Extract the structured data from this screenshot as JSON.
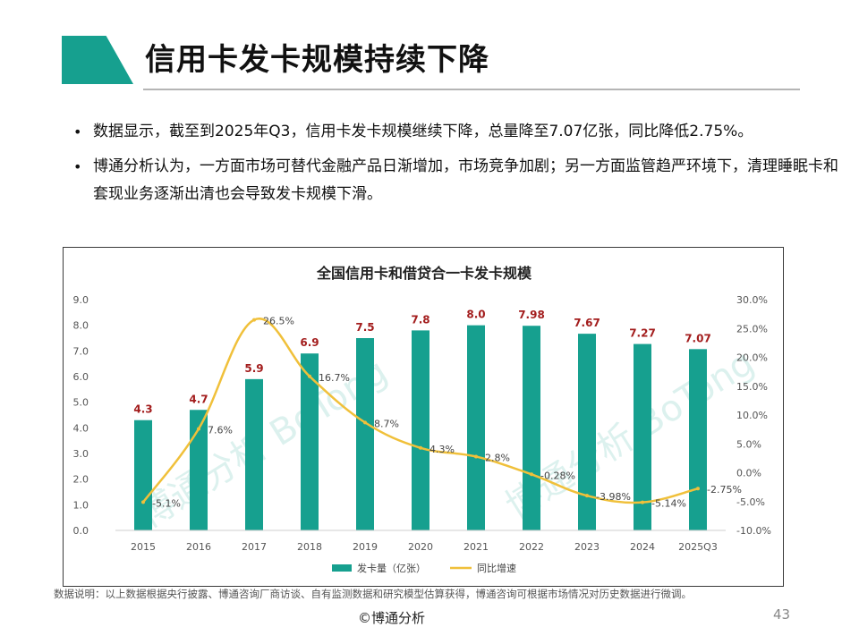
{
  "slide": {
    "title": "信用卡发卡规模持续下降",
    "bullets": [
      "数据显示，截至到2025年Q3，信用卡发卡规模继续下降，总量降至7.07亿张，同比降低2.75%。",
      "博通分析认为，一方面市场可替代金融产品日渐增加，市场竞争加剧；另一方面监管趋严环境下，清理睡眠卡和套现业务逐渐出清也会导致发卡规模下滑。"
    ],
    "bullet_symbol": "•",
    "footnote": "数据说明：以上数据根据央行披露、博通咨询厂商访谈、自有监测数据和研究模型估算获得，博通咨询可根据市场情况对历史数据进行微调。",
    "copyright": "©博通分析",
    "page_number": "43",
    "accent_color": "#16a08f"
  },
  "chart_data": {
    "type": "bar",
    "title": "全国信用卡和借贷合一卡发卡规模",
    "categories": [
      "2015",
      "2016",
      "2017",
      "2018",
      "2019",
      "2020",
      "2021",
      "2022",
      "2023",
      "2024",
      "2025Q3"
    ],
    "series": [
      {
        "name": "发卡量（亿张）",
        "type": "bar",
        "axis": "left",
        "color": "#16a08f",
        "values": [
          4.3,
          4.7,
          5.9,
          6.9,
          7.5,
          7.8,
          8.0,
          7.98,
          7.67,
          7.27,
          7.07
        ],
        "labels": [
          "4.3",
          "4.7",
          "5.9",
          "6.9",
          "7.5",
          "7.8",
          "8.0",
          "7.98",
          "7.67",
          "7.27",
          "7.07"
        ],
        "label_color": "#a31d1d"
      },
      {
        "name": "同比增速",
        "type": "line",
        "axis": "right",
        "color": "#f0c03a",
        "values": [
          -5.1,
          7.6,
          26.5,
          16.7,
          8.7,
          4.3,
          2.8,
          -0.28,
          -3.98,
          -5.14,
          -2.75
        ],
        "labels": [
          "-5.1%",
          "7.6%",
          "26.5%",
          "16.7%",
          "8.7%",
          "4.3%",
          "2.8%",
          "-0.28%",
          "-3.98%",
          "-5.14%",
          "-2.75%"
        ],
        "label_color": "#444444"
      }
    ],
    "y_left": {
      "min": 0,
      "max": 9,
      "ticks": [
        "0.0",
        "1.0",
        "2.0",
        "3.0",
        "4.0",
        "5.0",
        "6.0",
        "7.0",
        "8.0",
        "9.0"
      ],
      "tick_values": [
        0,
        1,
        2,
        3,
        4,
        5,
        6,
        7,
        8,
        9
      ]
    },
    "y_right": {
      "min": -10,
      "max": 30,
      "ticks": [
        "-10.0%",
        "-5.0%",
        "0.0%",
        "5.0%",
        "10.0%",
        "15.0%",
        "20.0%",
        "25.0%",
        "30.0%"
      ],
      "tick_values": [
        -10,
        -5,
        0,
        5,
        10,
        15,
        20,
        25,
        30
      ]
    },
    "legend_position": "bottom-center",
    "grid": false,
    "watermark": "博通分析 BoTong"
  }
}
